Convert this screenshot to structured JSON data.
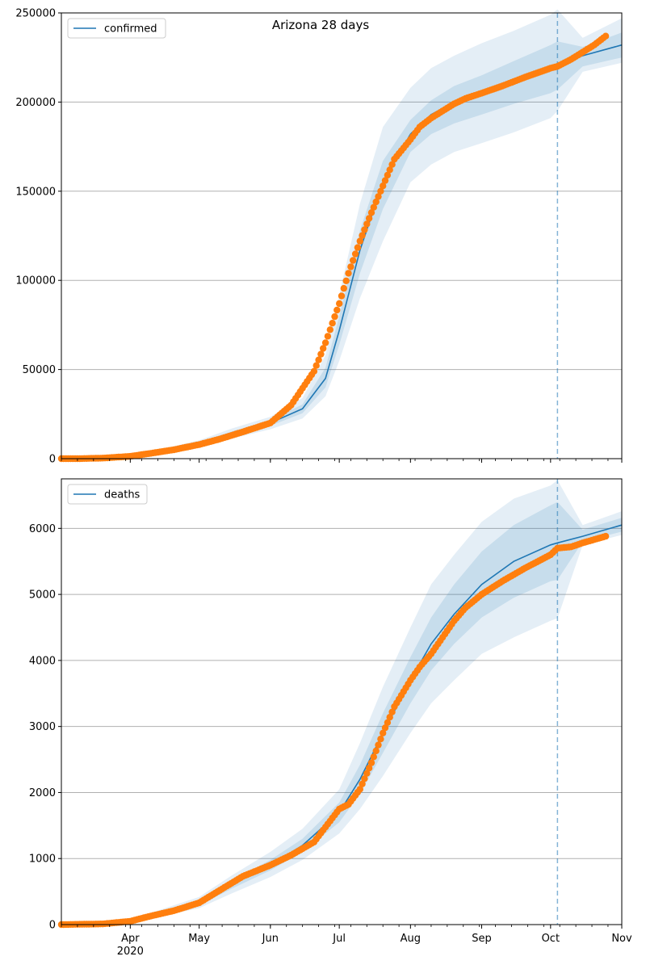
{
  "figure": {
    "title": "Arizona 28 days"
  },
  "colors": {
    "model_line": "#1f77b4",
    "observed_points": "#ff7f0e",
    "band": "#1f77b4",
    "grid": "#b0b0b0",
    "forecast_divider": "#1f77b4"
  },
  "x_axis": {
    "ticks": [
      {
        "date": "2020-04-01",
        "label": "Apr"
      },
      {
        "date": "2020-05-01",
        "label": "May"
      },
      {
        "date": "2020-06-01",
        "label": "Jun"
      },
      {
        "date": "2020-07-01",
        "label": "Jul"
      },
      {
        "date": "2020-08-01",
        "label": "Aug"
      },
      {
        "date": "2020-09-01",
        "label": "Sep"
      },
      {
        "date": "2020-10-01",
        "label": "Oct"
      },
      {
        "date": "2020-11-01",
        "label": "Nov"
      }
    ],
    "year_label": "2020",
    "range": [
      "2020-03-02",
      "2020-11-01"
    ]
  },
  "chart_data": [
    {
      "type": "line",
      "legend": "confirmed",
      "legend_position": "upper left",
      "grid": "horizontal",
      "ylim": [
        0,
        250000
      ],
      "y_ticks": [
        0,
        50000,
        100000,
        150000,
        200000,
        250000
      ],
      "forecast_start": "2020-10-04",
      "observed_end": "2020-10-25",
      "model": {
        "x": [
          "2020-03-02",
          "2020-03-15",
          "2020-04-01",
          "2020-04-15",
          "2020-05-01",
          "2020-05-15",
          "2020-06-01",
          "2020-06-15",
          "2020-06-25",
          "2020-07-01",
          "2020-07-10",
          "2020-07-20",
          "2020-08-01",
          "2020-08-10",
          "2020-08-20",
          "2020-09-01",
          "2020-09-15",
          "2020-10-01",
          "2020-10-04",
          "2020-10-15",
          "2020-11-01"
        ],
        "y": [
          0,
          300,
          2000,
          4500,
          8500,
          14000,
          20000,
          28000,
          45000,
          72000,
          117000,
          155000,
          182000,
          193000,
          200000,
          205000,
          212000,
          219000,
          221000,
          226000,
          232000
        ],
        "band_inner": [
          [
            0,
            0
          ],
          [
            250,
            350
          ],
          [
            1800,
            2200
          ],
          [
            4100,
            4900
          ],
          [
            7800,
            9200
          ],
          [
            12800,
            15200
          ],
          [
            18500,
            21500
          ],
          [
            25500,
            30500
          ],
          [
            40000,
            51000
          ],
          [
            64000,
            80000
          ],
          [
            104000,
            128000
          ],
          [
            140000,
            167000
          ],
          [
            172000,
            190000
          ],
          [
            182000,
            201000
          ],
          [
            188000,
            209000
          ],
          [
            193000,
            215000
          ],
          [
            199000,
            223000
          ],
          [
            205000,
            232000
          ],
          [
            207000,
            234000
          ],
          [
            220000,
            231000
          ],
          [
            225000,
            239000
          ]
        ],
        "band_outer": [
          [
            0,
            0
          ],
          [
            180,
            420
          ],
          [
            1500,
            2600
          ],
          [
            3500,
            5500
          ],
          [
            6800,
            10300
          ],
          [
            11200,
            16800
          ],
          [
            16500,
            23500
          ],
          [
            22500,
            34000
          ],
          [
            35000,
            58000
          ],
          [
            55000,
            92000
          ],
          [
            90000,
            143000
          ],
          [
            122000,
            186000
          ],
          [
            155000,
            208000
          ],
          [
            165000,
            219000
          ],
          [
            172000,
            226000
          ],
          [
            177000,
            233000
          ],
          [
            183000,
            240000
          ],
          [
            191000,
            249000
          ],
          [
            195000,
            252000
          ],
          [
            217000,
            236000
          ],
          [
            222000,
            247000
          ]
        ]
      },
      "observed": {
        "x": [
          "2020-03-02",
          "2020-03-10",
          "2020-03-20",
          "2020-04-01",
          "2020-04-10",
          "2020-04-20",
          "2020-05-01",
          "2020-05-10",
          "2020-05-20",
          "2020-06-01",
          "2020-06-10",
          "2020-06-20",
          "2020-06-25",
          "2020-07-01",
          "2020-07-05",
          "2020-07-10",
          "2020-07-15",
          "2020-07-20",
          "2020-07-25",
          "2020-08-01",
          "2020-08-05",
          "2020-08-10",
          "2020-08-15",
          "2020-08-20",
          "2020-08-25",
          "2020-09-01",
          "2020-09-10",
          "2020-09-20",
          "2020-10-01",
          "2020-10-04",
          "2020-10-10",
          "2020-10-15",
          "2020-10-20",
          "2020-10-25"
        ],
        "y": [
          0,
          20,
          300,
          1300,
          3000,
          5000,
          7900,
          11000,
          15000,
          20000,
          30000,
          49000,
          65000,
          87000,
          104000,
          122000,
          138000,
          153000,
          168000,
          179000,
          186000,
          191000,
          195000,
          199000,
          202000,
          205000,
          209000,
          214000,
          219000,
          220000,
          224000,
          228000,
          232000,
          237000
        ]
      }
    },
    {
      "type": "line",
      "legend": "deaths",
      "legend_position": "upper left",
      "grid": "horizontal",
      "ylim": [
        0,
        6750
      ],
      "y_ticks": [
        0,
        1000,
        2000,
        3000,
        4000,
        5000,
        6000
      ],
      "forecast_start": "2020-10-04",
      "observed_end": "2020-10-25",
      "model": {
        "x": [
          "2020-03-02",
          "2020-03-15",
          "2020-04-01",
          "2020-04-15",
          "2020-05-01",
          "2020-05-15",
          "2020-06-01",
          "2020-06-15",
          "2020-07-01",
          "2020-07-10",
          "2020-07-20",
          "2020-08-01",
          "2020-08-10",
          "2020-08-20",
          "2020-09-01",
          "2020-09-15",
          "2020-10-01",
          "2020-10-04",
          "2020-10-15",
          "2020-11-01"
        ],
        "y": [
          0,
          5,
          50,
          180,
          330,
          600,
          900,
          1200,
          1700,
          2200,
          2900,
          3700,
          4250,
          4700,
          5150,
          5500,
          5750,
          5780,
          5880,
          6050
        ],
        "band_inner": [
          [
            0,
            0
          ],
          [
            3,
            7
          ],
          [
            40,
            60
          ],
          [
            155,
            205
          ],
          [
            290,
            370
          ],
          [
            540,
            660
          ],
          [
            820,
            980
          ],
          [
            1100,
            1300
          ],
          [
            1550,
            1850
          ],
          [
            1980,
            2420
          ],
          [
            2600,
            3200
          ],
          [
            3350,
            4050
          ],
          [
            3850,
            4650
          ],
          [
            4250,
            5150
          ],
          [
            4650,
            5650
          ],
          [
            4950,
            6050
          ],
          [
            5200,
            6350
          ],
          [
            5220,
            6400
          ],
          [
            5800,
            5980
          ],
          [
            5950,
            6160
          ]
        ],
        "band_outer": [
          [
            0,
            0
          ],
          [
            1,
            10
          ],
          [
            30,
            75
          ],
          [
            130,
            235
          ],
          [
            250,
            420
          ],
          [
            470,
            740
          ],
          [
            720,
            1100
          ],
          [
            980,
            1450
          ],
          [
            1380,
            2050
          ],
          [
            1750,
            2750
          ],
          [
            2250,
            3600
          ],
          [
            2900,
            4500
          ],
          [
            3350,
            5150
          ],
          [
            3700,
            5600
          ],
          [
            4100,
            6100
          ],
          [
            4350,
            6450
          ],
          [
            4600,
            6650
          ],
          [
            4640,
            6730
          ],
          [
            5750,
            6050
          ],
          [
            5900,
            6260
          ]
        ]
      },
      "observed": {
        "x": [
          "2020-03-02",
          "2020-03-20",
          "2020-04-01",
          "2020-04-10",
          "2020-04-20",
          "2020-05-01",
          "2020-05-10",
          "2020-05-20",
          "2020-06-01",
          "2020-06-10",
          "2020-06-20",
          "2020-07-01",
          "2020-07-05",
          "2020-07-10",
          "2020-07-15",
          "2020-07-20",
          "2020-07-25",
          "2020-08-01",
          "2020-08-05",
          "2020-08-10",
          "2020-08-15",
          "2020-08-20",
          "2020-08-25",
          "2020-09-01",
          "2020-09-10",
          "2020-09-20",
          "2020-10-01",
          "2020-10-04",
          "2020-10-10",
          "2020-10-15",
          "2020-10-20",
          "2020-10-25"
        ],
        "y": [
          0,
          10,
          50,
          130,
          210,
          330,
          520,
          730,
          900,
          1050,
          1250,
          1750,
          1820,
          2050,
          2450,
          2900,
          3300,
          3700,
          3900,
          4100,
          4350,
          4600,
          4800,
          5000,
          5200,
          5400,
          5600,
          5700,
          5720,
          5780,
          5830,
          5880
        ]
      }
    }
  ]
}
